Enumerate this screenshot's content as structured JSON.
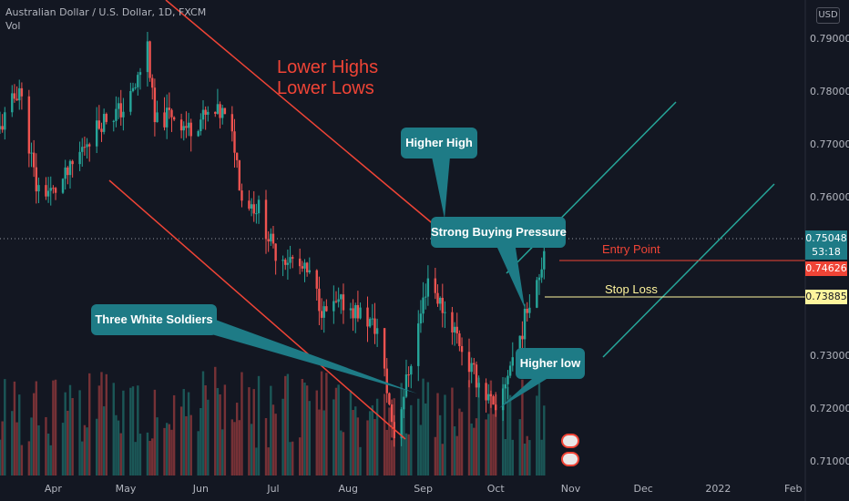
{
  "header": {
    "symbol_line": "Australian Dollar / U.S. Dollar, 1D, FXCM",
    "vol_label": "Vol",
    "currency_button": "USD"
  },
  "annotations": {
    "lower_highs": "Lower Highs",
    "lower_lows": "Lower Lows",
    "higher_high": "Higher High",
    "strong_buying": "Strong Buying Pressure",
    "three_white_soldiers": "Three White Soldiers",
    "higher_low": "Higher low",
    "entry_point": "Entry Point",
    "stop_loss": "Stop Loss"
  },
  "price_tags": {
    "last_price": "0.75048",
    "countdown": "53:18",
    "entry_price": "0.74626",
    "stop_price": "0.73885"
  },
  "colors": {
    "background": "#131722",
    "up": "#26a69a",
    "down": "#ef5350",
    "annotation_red": "#ef4436",
    "callout_teal": "#1e7b86",
    "channel_green": "#26a69a",
    "stop_yellow": "#fff59d"
  },
  "chart_data": {
    "type": "candlestick",
    "title": "Australian Dollar / U.S. Dollar, 1D, FXCM",
    "y_tick_labels": [
      "0.79000",
      "0.78000",
      "0.77000",
      "0.76000",
      "0.73000",
      "0.72000",
      "0.71000"
    ],
    "y_ticks": [
      0.79,
      0.78,
      0.77,
      0.76,
      0.73,
      0.72,
      0.71
    ],
    "ylim": [
      0.7025,
      0.7975
    ],
    "x_tick_labels": [
      "Apr",
      "May",
      "Jun",
      "Jul",
      "Aug",
      "Sep",
      "Oct",
      "Nov",
      "Dec",
      "2022",
      "Feb"
    ],
    "x_tick_dates": [
      "2021-04-01",
      "2021-05-01",
      "2021-06-01",
      "2021-07-01",
      "2021-08-01",
      "2021-09-01",
      "2021-10-01",
      "2021-11-01",
      "2021-12-01",
      "2022-01-01",
      "2022-02-01"
    ],
    "xlim": [
      "2021-03-10",
      "2022-02-06"
    ],
    "close_path": [
      [
        "2021-03-10",
        0.773
      ],
      [
        "2021-03-18",
        0.781
      ],
      [
        "2021-03-25",
        0.762
      ],
      [
        "2021-04-01",
        0.761
      ],
      [
        "2021-04-08",
        0.765
      ],
      [
        "2021-04-15",
        0.771
      ],
      [
        "2021-04-22",
        0.775
      ],
      [
        "2021-05-01",
        0.777
      ],
      [
        "2021-05-05",
        0.781
      ],
      [
        "2021-05-10",
        0.789
      ],
      [
        "2021-05-13",
        0.774
      ],
      [
        "2021-05-20",
        0.776
      ],
      [
        "2021-05-27",
        0.773
      ],
      [
        "2021-06-01",
        0.775
      ],
      [
        "2021-06-10",
        0.776
      ],
      [
        "2021-06-15",
        0.77
      ],
      [
        "2021-06-18",
        0.76
      ],
      [
        "2021-06-25",
        0.758
      ],
      [
        "2021-07-01",
        0.75
      ],
      [
        "2021-07-09",
        0.748
      ],
      [
        "2021-07-16",
        0.745
      ],
      [
        "2021-07-22",
        0.738
      ],
      [
        "2021-07-30",
        0.74
      ],
      [
        "2021-08-06",
        0.738
      ],
      [
        "2021-08-13",
        0.735
      ],
      [
        "2021-08-20",
        0.715
      ],
      [
        "2021-08-25",
        0.725
      ],
      [
        "2021-08-31",
        0.738
      ],
      [
        "2021-09-03",
        0.745
      ],
      [
        "2021-09-08",
        0.74
      ],
      [
        "2021-09-14",
        0.735
      ],
      [
        "2021-09-20",
        0.728
      ],
      [
        "2021-09-24",
        0.725
      ],
      [
        "2021-09-29",
        0.721
      ],
      [
        "2021-10-01",
        0.718
      ],
      [
        "2021-10-06",
        0.727
      ],
      [
        "2021-10-12",
        0.735
      ],
      [
        "2021-10-15",
        0.741
      ],
      [
        "2021-10-19",
        0.746
      ],
      [
        "2021-10-21",
        0.75
      ]
    ],
    "volume": "histogram (relative heights)",
    "horizontal_lines": [
      {
        "name": "Entry Point",
        "value": 0.74626
      },
      {
        "name": "Stop Loss",
        "value": 0.73885
      }
    ],
    "last_price": 0.75048,
    "grid": false
  }
}
